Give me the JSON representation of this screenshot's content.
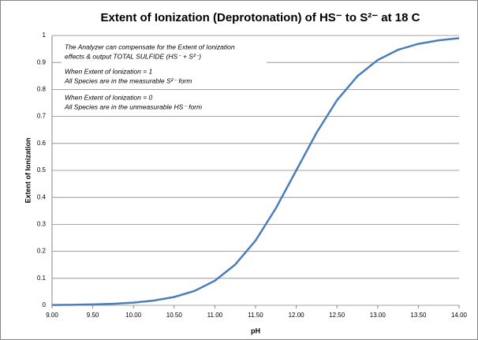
{
  "chart_data": {
    "type": "line",
    "title": "Extent of Ionization (Deprotonation) of HS⁻ to S²⁻ at 18 C",
    "xlabel": "pH",
    "ylabel": "Extent of Ionization",
    "annotations": [
      "The Analyzer can compensate for the Extent of Ionization",
      "effects & output TOTAL SULFIDE (HS⁻ + S²⁻)",
      "When Extent of Ionization = 1",
      "All Species are in the measurable S²⁻ form",
      "When Extent of Ionization = 0",
      "All Species are in the unmeasurable HS⁻ form"
    ],
    "x": [
      9,
      9.25,
      9.5,
      9.75,
      10,
      10.25,
      10.5,
      10.75,
      11,
      11.25,
      11.5,
      11.75,
      12,
      12.25,
      12.5,
      12.75,
      13,
      13.25,
      13.5,
      13.75,
      14
    ],
    "series": [
      {
        "color": "#4a7ebb",
        "values": [
          0.001,
          0.0018,
          0.0032,
          0.0056,
          0.0099,
          0.0175,
          0.0307,
          0.0532,
          0.0909,
          0.151,
          0.24,
          0.36,
          0.5,
          0.64,
          0.76,
          0.849,
          0.909,
          0.947,
          0.969,
          0.982,
          0.99
        ]
      }
    ],
    "xlim": [
      9,
      14
    ],
    "xticks": [
      {
        "value": 9,
        "label": "9.00"
      },
      {
        "value": 9.5,
        "label": "9.50"
      },
      {
        "value": 10,
        "label": "10.00"
      },
      {
        "value": 10.5,
        "label": "10.50"
      },
      {
        "value": 11,
        "label": "11.00"
      },
      {
        "value": 11.5,
        "label": "11.50"
      },
      {
        "value": 12,
        "label": "12.00"
      },
      {
        "value": 12.5,
        "label": "12.50"
      },
      {
        "value": 13,
        "label": "13.00"
      },
      {
        "value": 13.5,
        "label": "13.50"
      },
      {
        "value": 14,
        "label": "14.00"
      }
    ],
    "ylim": [
      0,
      1
    ],
    "yticks": [
      0,
      0.1,
      0.2,
      0.3,
      0.4,
      0.5,
      0.6,
      0.7,
      0.8,
      0.9,
      1
    ],
    "grid": true
  }
}
